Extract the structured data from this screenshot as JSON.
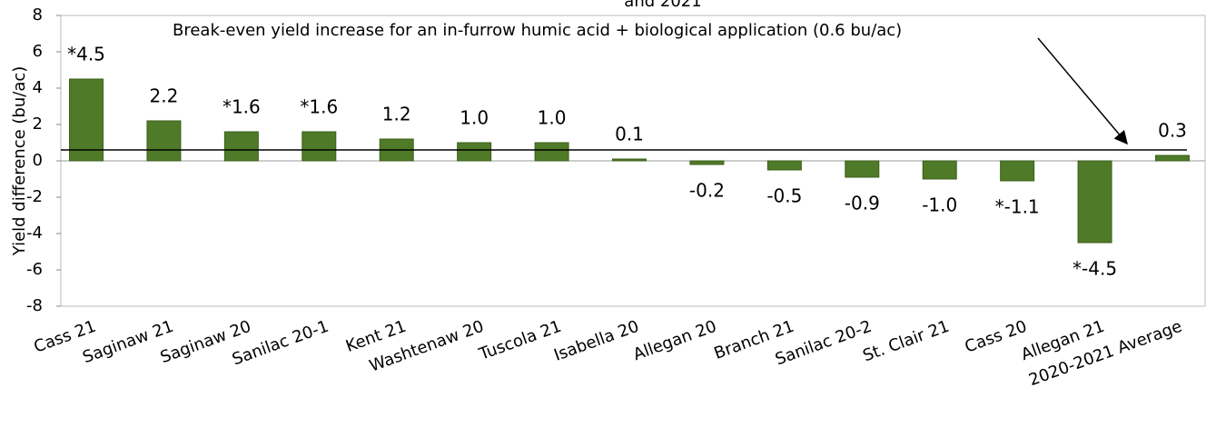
{
  "chart_data": {
    "type": "bar",
    "title": "and 2021",
    "y_label": "Yield difference (bu/ac)",
    "categories": [
      "Cass 21",
      "Saginaw 21",
      "Saginaw 20",
      "Sanilac 20-1",
      "Kent 21",
      "Washtenaw 20",
      "Tuscola 21",
      "Isabella 20",
      "Allegan 20",
      "Branch 21",
      "Sanilac 20-2",
      "St. Clair 21",
      "Cass 20",
      "Allegan 21",
      "2020-2021 Average"
    ],
    "values": [
      4.5,
      2.2,
      1.6,
      1.6,
      1.2,
      1.0,
      1.0,
      0.1,
      -0.2,
      -0.5,
      -0.9,
      -1.0,
      -1.1,
      -4.5,
      0.3
    ],
    "value_labels": [
      "*4.5",
      "2.2",
      "*1.6",
      "*1.6",
      "1.2",
      "1.0",
      "1.0",
      "0.1",
      "-0.2",
      "-0.5",
      "-0.9",
      "-1.0",
      "*-1.1",
      "*-4.5",
      "0.3"
    ],
    "color": "#4f7a28",
    "ylim": [
      -8,
      8
    ],
    "yticks": [
      -8,
      -6,
      -4,
      -2,
      0,
      2,
      4,
      6,
      8
    ],
    "break_even": 0.6,
    "annotation": "Break-even yield increase for an in-furrow humic acid + biological application (0.6 bu/ac)"
  }
}
